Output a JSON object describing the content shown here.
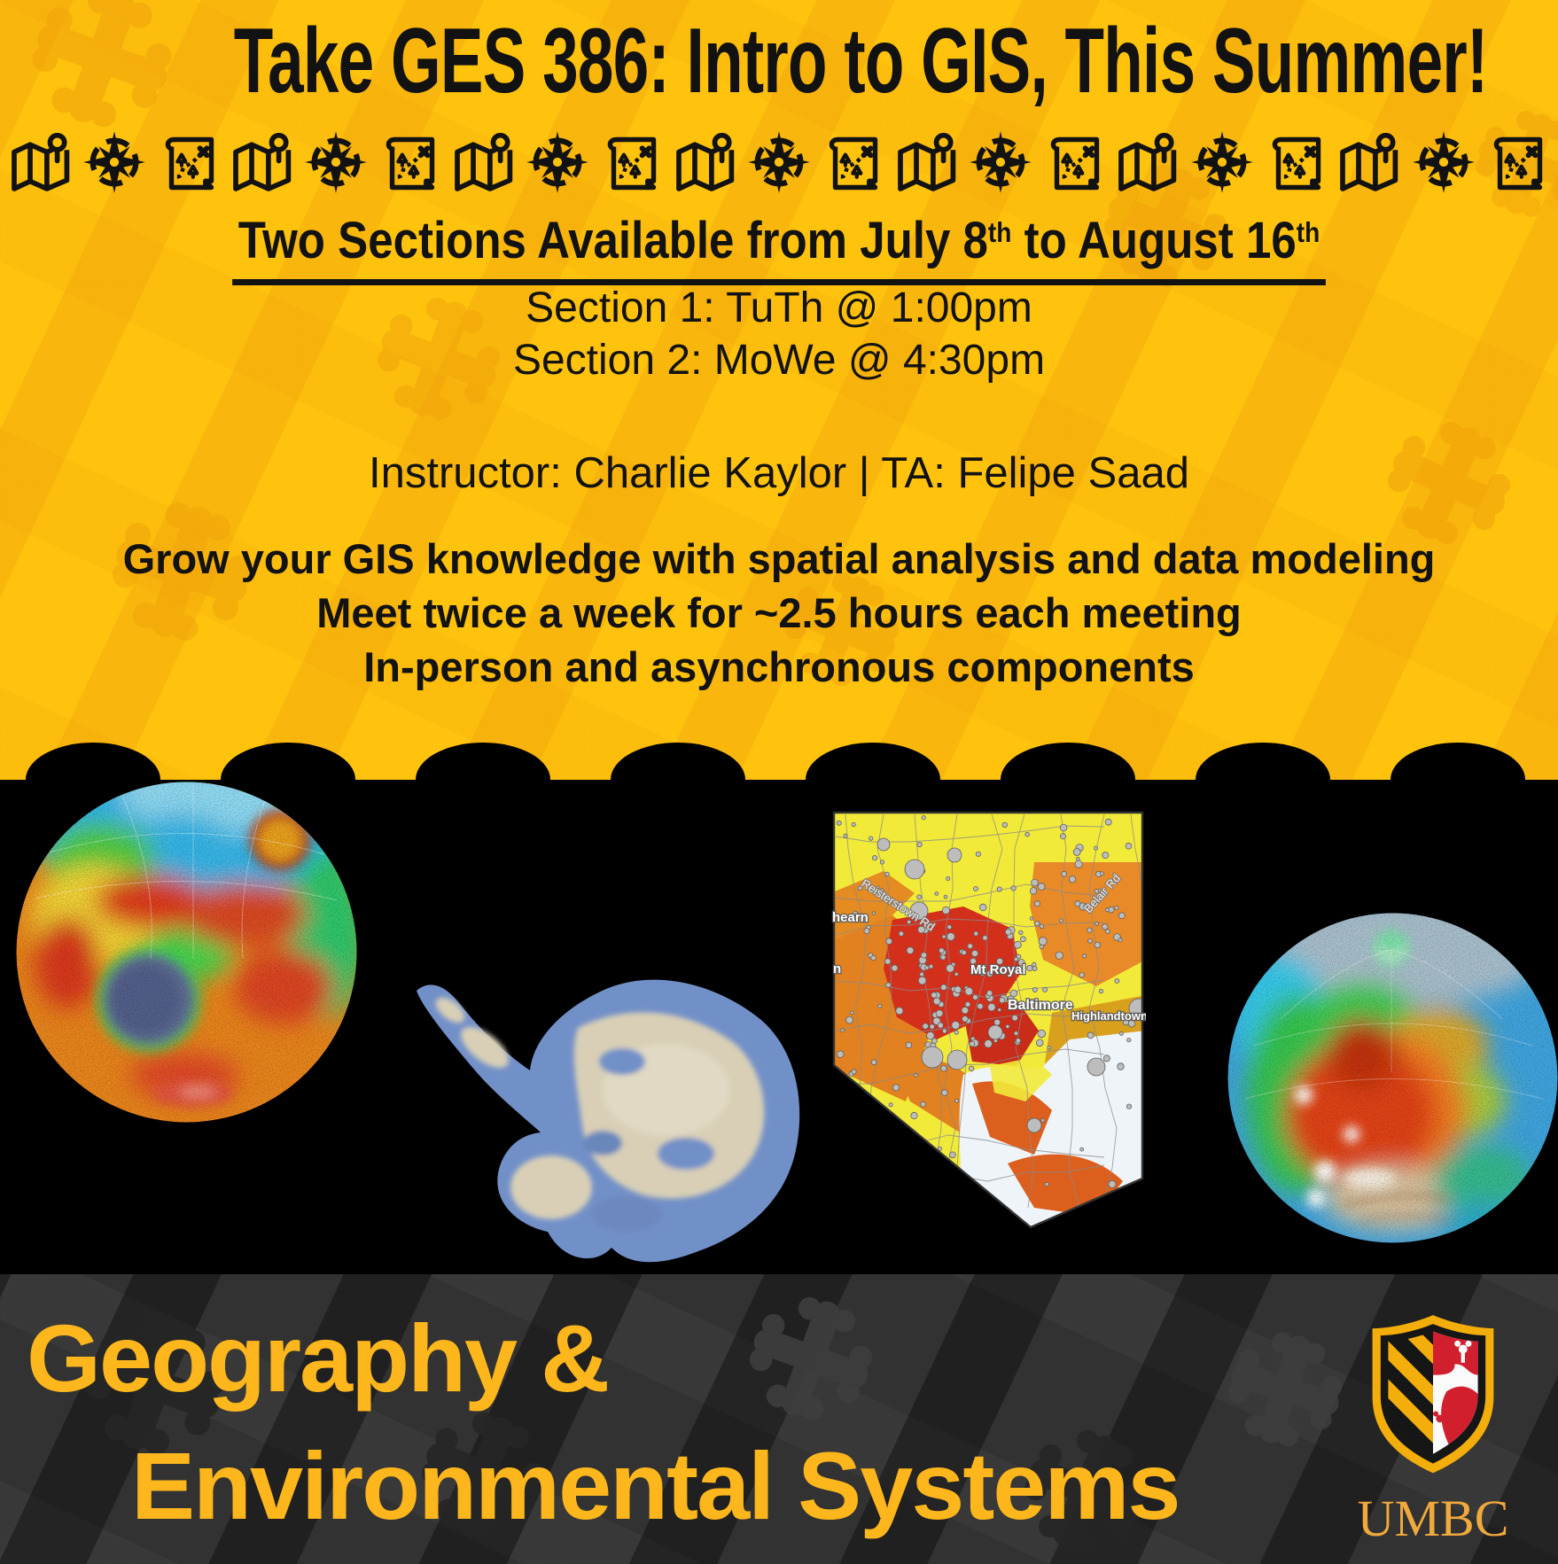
{
  "poster": {
    "title": "Take GES 386: Intro to GIS, This Summer!",
    "dates_heading": {
      "part1": "Two Sections Available from July 8",
      "sup1": "th",
      "part2": " to August 16",
      "sup2": "th"
    },
    "section1": "Section 1: TuTh @ 1:00pm",
    "section2": "Section 2: MoWe @ 4:30pm",
    "instructor_line": "Instructor: Charlie Kaylor | TA: Felipe Saad",
    "features": [
      "Grow your GIS knowledge with spatial analysis and data modeling",
      "Meet twice a week for ~2.5 hours each meeting",
      "In-person and asynchronous components"
    ]
  },
  "icon_row": {
    "pattern": [
      "folded-map-pin-icon",
      "compass-rose-icon",
      "treasure-map-icon"
    ],
    "repeat": 7
  },
  "baltimore_map_labels": {
    "hearn": "hearn",
    "n": "n",
    "reisterstown_rd": "Reisterstown Rd",
    "belair_rd": "Belair Rd",
    "mt_royal": "Mt Royal",
    "baltimore": "Baltimore",
    "highlandtown": "Highlandtown"
  },
  "footer": {
    "dept_line1": "Geography &",
    "dept_line2": "Environmental Systems",
    "umbc_wordmark": "UMBC"
  },
  "colors": {
    "poster_yellow": "#FFC20D",
    "pattern_amber": "#F0A30A",
    "dept_gold": "#FDB61C",
    "umbc_gold": "#F3AE0B",
    "footer_gray": "#323232",
    "map_red": "#D3301C",
    "map_orange": "#E2811F",
    "map_yellow": "#F2EA39",
    "harbor_white": "#EFF4F9"
  }
}
